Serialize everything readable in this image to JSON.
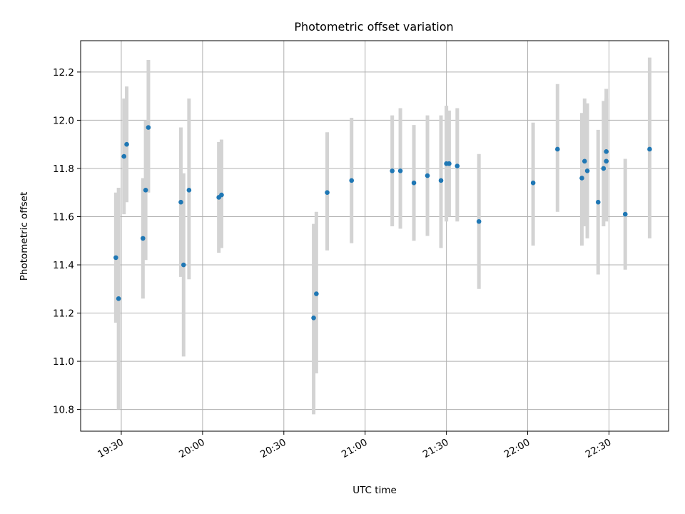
{
  "chart_data": {
    "type": "scatter",
    "title": "Photometric offset variation",
    "xlabel": "UTC time",
    "ylabel": "Photometric offset",
    "xlim": [
      "19:15",
      "22:52"
    ],
    "ylim": [
      10.71,
      12.33
    ],
    "x_ticks": [
      "19:30",
      "20:00",
      "20:30",
      "21:00",
      "21:30",
      "22:00",
      "22:30"
    ],
    "y_ticks": [
      10.8,
      11.0,
      11.2,
      11.4,
      11.6,
      11.8,
      12.0,
      12.2
    ],
    "grid": true,
    "colors": {
      "points": "#1f77b4",
      "errorbars": "#d3d3d3"
    },
    "series": [
      {
        "x": [
          "19:28",
          "19:29",
          "19:31",
          "19:32",
          "19:38",
          "19:39",
          "19:40",
          "19:52",
          "19:53",
          "19:55",
          "20:06",
          "20:07",
          "20:41",
          "20:42",
          "20:46",
          "20:55",
          "21:10",
          "21:13",
          "21:18",
          "21:23",
          "21:28",
          "21:30",
          "21:31",
          "21:34",
          "21:42",
          "22:02",
          "22:11",
          "22:20",
          "22:21",
          "22:22",
          "22:26",
          "22:28",
          "22:29",
          "22:29",
          "22:36",
          "22:45"
        ],
        "y": [
          11.43,
          11.26,
          11.85,
          11.9,
          11.51,
          11.71,
          11.97,
          11.66,
          11.4,
          11.71,
          11.68,
          11.69,
          11.18,
          11.28,
          11.7,
          11.75,
          11.79,
          11.79,
          11.74,
          11.77,
          11.75,
          11.82,
          11.82,
          11.81,
          11.58,
          11.74,
          11.88,
          11.76,
          11.83,
          11.79,
          11.66,
          11.8,
          11.83,
          11.87,
          11.61,
          11.88
        ],
        "yerr_low": [
          11.16,
          10.8,
          11.61,
          11.66,
          11.26,
          11.42,
          11.7,
          11.35,
          11.02,
          11.34,
          11.45,
          11.47,
          10.78,
          10.95,
          11.46,
          11.49,
          11.56,
          11.55,
          11.5,
          11.52,
          11.47,
          11.58,
          11.6,
          11.58,
          11.3,
          11.48,
          11.62,
          11.48,
          11.56,
          11.51,
          11.36,
          11.56,
          11.58,
          11.6,
          11.38,
          11.51
        ],
        "yerr_high": [
          11.7,
          11.72,
          12.09,
          12.14,
          11.76,
          12.0,
          12.25,
          11.97,
          11.78,
          12.09,
          11.91,
          11.92,
          11.57,
          11.62,
          11.95,
          12.01,
          12.02,
          12.05,
          11.98,
          12.02,
          12.02,
          12.06,
          12.04,
          12.05,
          11.86,
          11.99,
          12.15,
          12.03,
          12.09,
          12.07,
          11.96,
          12.08,
          12.09,
          12.13,
          11.84,
          12.26
        ]
      }
    ]
  }
}
